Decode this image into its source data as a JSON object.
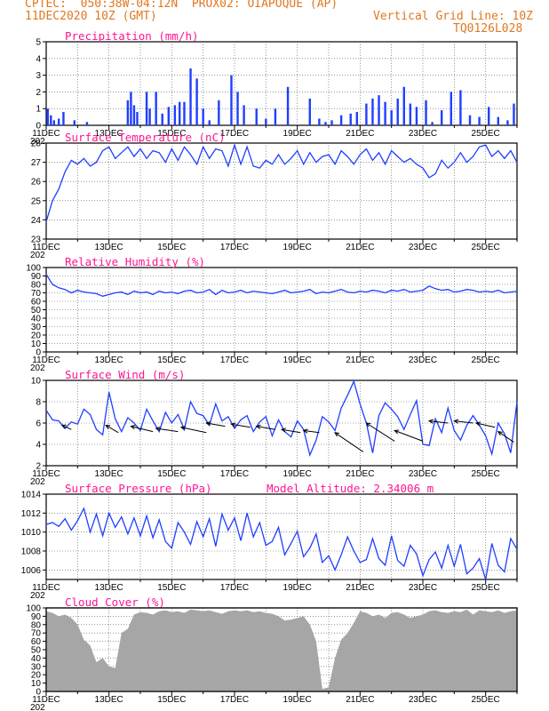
{
  "header": {
    "line1": "CPTEC:  050:38W-04:12N  PROX02: OIAPOQUE (AP)",
    "line2_left": "11DEC2020 10Z (GMT)",
    "line2_right": "Vertical Grid Line: 10Z",
    "line3_right": "TQ0126L028"
  },
  "colors": {
    "header": "#e07820",
    "title": "#ff1493",
    "line": "#1f3fff",
    "cloud": "#a6a6a6",
    "arrow": "#000000"
  },
  "xaxis": {
    "ticks": [
      "11DEC",
      "13DEC",
      "15DEC",
      "17DEC",
      "19DEC",
      "21DEC",
      "23DEC",
      "25DEC"
    ],
    "year_fragment": "202"
  },
  "chart_data": [
    {
      "type": "bar",
      "title": "Precipitation (mm/h)",
      "ylim": [
        0,
        5
      ],
      "yticks": [
        "0",
        "1",
        "2",
        "3",
        "4",
        "5"
      ],
      "days": [
        11,
        26
      ],
      "color": "#1f3fff",
      "x": [
        11.05,
        11.15,
        11.25,
        11.4,
        11.55,
        11.9,
        12.3,
        13.6,
        13.7,
        13.8,
        13.9,
        14.2,
        14.3,
        14.5,
        14.7,
        14.9,
        15.1,
        15.25,
        15.4,
        15.6,
        15.8,
        16.0,
        16.2,
        16.5,
        16.9,
        17.1,
        17.3,
        17.7,
        18.0,
        18.3,
        18.7,
        19.4,
        19.7,
        19.9,
        20.1,
        20.4,
        20.7,
        20.9,
        21.2,
        21.4,
        21.6,
        21.8,
        22.0,
        22.2,
        22.4,
        22.6,
        22.8,
        23.1,
        23.3,
        23.6,
        23.9,
        24.2,
        24.5,
        24.8,
        25.1,
        25.4,
        25.7,
        25.9
      ],
      "values": [
        1.0,
        0.6,
        0.3,
        0.4,
        0.8,
        0.3,
        0.2,
        1.5,
        2.0,
        1.2,
        0.8,
        2.0,
        1.0,
        2.0,
        0.7,
        1.1,
        1.2,
        1.4,
        1.4,
        3.4,
        2.8,
        1.0,
        0.3,
        1.5,
        3.0,
        2.0,
        1.2,
        1.0,
        0.4,
        1.0,
        2.3,
        1.6,
        0.4,
        0.2,
        0.3,
        0.6,
        0.7,
        0.8,
        1.3,
        1.6,
        1.8,
        1.4,
        0.9,
        1.6,
        2.3,
        1.3,
        1.1,
        1.5,
        0.2,
        0.9,
        2.0,
        2.1,
        0.6,
        0.5,
        1.1,
        0.5,
        0.3,
        1.3
      ]
    },
    {
      "type": "line",
      "title": "Surface Temperature (nC)",
      "ylim": [
        23,
        28
      ],
      "yticks": [
        "23",
        "24",
        "25",
        "26",
        "27",
        "28"
      ],
      "days": [
        11,
        26
      ],
      "color": "#1f3fff",
      "x": [
        11.0,
        11.2,
        11.4,
        11.6,
        11.8,
        12.0,
        12.2,
        12.4,
        12.6,
        12.8,
        13.0,
        13.2,
        13.4,
        13.6,
        13.8,
        14.0,
        14.2,
        14.4,
        14.6,
        14.8,
        15.0,
        15.2,
        15.4,
        15.6,
        15.8,
        16.0,
        16.2,
        16.4,
        16.6,
        16.8,
        17.0,
        17.2,
        17.4,
        17.6,
        17.8,
        18.0,
        18.2,
        18.4,
        18.6,
        18.8,
        19.0,
        19.2,
        19.4,
        19.6,
        19.8,
        20.0,
        20.2,
        20.4,
        20.6,
        20.8,
        21.0,
        21.2,
        21.4,
        21.6,
        21.8,
        22.0,
        22.2,
        22.4,
        22.6,
        22.8,
        23.0,
        23.2,
        23.4,
        23.6,
        23.8,
        24.0,
        24.2,
        24.4,
        24.6,
        24.8,
        25.0,
        25.2,
        25.4,
        25.6,
        25.8,
        26.0
      ],
      "values": [
        23.9,
        25.0,
        25.6,
        26.5,
        27.1,
        26.9,
        27.2,
        26.8,
        27.0,
        27.6,
        27.8,
        27.2,
        27.5,
        27.8,
        27.3,
        27.7,
        27.2,
        27.6,
        27.5,
        27.0,
        27.7,
        27.1,
        27.8,
        27.4,
        26.9,
        27.8,
        27.2,
        27.7,
        27.6,
        26.8,
        27.9,
        26.9,
        27.8,
        26.8,
        26.7,
        27.1,
        26.9,
        27.4,
        26.9,
        27.2,
        27.6,
        26.9,
        27.5,
        27.0,
        27.3,
        27.4,
        26.9,
        27.6,
        27.3,
        26.9,
        27.4,
        27.7,
        27.1,
        27.5,
        26.9,
        27.6,
        27.3,
        27.0,
        27.2,
        26.9,
        26.7,
        26.2,
        26.4,
        27.1,
        26.7,
        27.0,
        27.5,
        27.0,
        27.3,
        27.8,
        27.9,
        27.3,
        27.6,
        27.2,
        27.6,
        27.0
      ]
    },
    {
      "type": "line",
      "title": "Relative Humidity (%)",
      "ylim": [
        0,
        100
      ],
      "yticks": [
        "0",
        "10",
        "20",
        "30",
        "40",
        "50",
        "60",
        "70",
        "80",
        "90",
        "100"
      ],
      "days": [
        11,
        26
      ],
      "color": "#1f3fff",
      "x": [
        11.0,
        11.2,
        11.4,
        11.6,
        11.8,
        12.0,
        12.2,
        12.4,
        12.6,
        12.8,
        13.0,
        13.2,
        13.4,
        13.6,
        13.8,
        14.0,
        14.2,
        14.4,
        14.6,
        14.8,
        15.0,
        15.2,
        15.4,
        15.6,
        15.8,
        16.0,
        16.2,
        16.4,
        16.6,
        16.8,
        17.0,
        17.2,
        17.4,
        17.6,
        17.8,
        18.0,
        18.2,
        18.4,
        18.6,
        18.8,
        19.0,
        19.2,
        19.4,
        19.6,
        19.8,
        20.0,
        20.2,
        20.4,
        20.6,
        20.8,
        21.0,
        21.2,
        21.4,
        21.6,
        21.8,
        22.0,
        22.2,
        22.4,
        22.6,
        22.8,
        23.0,
        23.2,
        23.4,
        23.6,
        23.8,
        24.0,
        24.2,
        24.4,
        24.6,
        24.8,
        25.0,
        25.2,
        25.4,
        25.6,
        25.8,
        26.0
      ],
      "values": [
        92,
        80,
        76,
        74,
        70,
        73,
        71,
        70,
        69,
        66,
        68,
        70,
        71,
        68,
        72,
        70,
        71,
        68,
        72,
        70,
        71,
        69,
        72,
        73,
        70,
        71,
        74,
        68,
        73,
        70,
        71,
        73,
        70,
        72,
        71,
        70,
        69,
        71,
        73,
        70,
        71,
        72,
        74,
        69,
        71,
        70,
        72,
        74,
        71,
        70,
        72,
        71,
        73,
        72,
        70,
        73,
        72,
        74,
        71,
        72,
        73,
        78,
        75,
        73,
        74,
        71,
        72,
        74,
        73,
        71,
        72,
        71,
        73,
        70,
        71,
        72
      ]
    },
    {
      "type": "line",
      "title": "Surface Wind (m/s)",
      "ylim": [
        2,
        10
      ],
      "yticks": [
        "2",
        "4",
        "6",
        "8",
        "10"
      ],
      "days": [
        11,
        26
      ],
      "color": "#1f3fff",
      "vectors": "arrows showing wind direction, mostly from the east",
      "x": [
        11.0,
        11.2,
        11.4,
        11.6,
        11.8,
        12.0,
        12.2,
        12.4,
        12.6,
        12.8,
        13.0,
        13.2,
        13.4,
        13.6,
        13.8,
        14.0,
        14.2,
        14.4,
        14.6,
        14.8,
        15.0,
        15.2,
        15.4,
        15.6,
        15.8,
        16.0,
        16.2,
        16.4,
        16.6,
        16.8,
        17.0,
        17.2,
        17.4,
        17.6,
        17.8,
        18.0,
        18.2,
        18.4,
        18.6,
        18.8,
        19.0,
        19.2,
        19.4,
        19.6,
        19.8,
        20.0,
        20.2,
        20.4,
        20.6,
        20.8,
        21.0,
        21.2,
        21.4,
        21.6,
        21.8,
        22.0,
        22.2,
        22.4,
        22.6,
        22.8,
        23.0,
        23.2,
        23.4,
        23.6,
        23.8,
        24.0,
        24.2,
        24.4,
        24.6,
        24.8,
        25.0,
        25.2,
        25.4,
        25.6,
        25.8,
        26.0
      ],
      "values": [
        7.2,
        6.3,
        6.2,
        5.5,
        6.1,
        5.9,
        7.3,
        6.8,
        5.4,
        4.9,
        8.9,
        6.4,
        5.2,
        6.5,
        6.0,
        5.3,
        7.3,
        6.2,
        5.2,
        7.0,
        6.0,
        6.8,
        5.4,
        8.0,
        6.9,
        6.7,
        5.8,
        7.8,
        6.2,
        6.6,
        5.5,
        6.3,
        6.7,
        5.2,
        6.1,
        6.6,
        4.8,
        6.3,
        5.2,
        4.7,
        6.2,
        5.4,
        3.0,
        4.4,
        6.6,
        6.1,
        5.3,
        7.4,
        8.6,
        9.9,
        7.8,
        6.0,
        3.2,
        6.7,
        7.9,
        7.3,
        6.6,
        5.4,
        6.8,
        8.1,
        4.0,
        3.9,
        6.4,
        5.1,
        7.4,
        5.3,
        4.4,
        5.8,
        6.7,
        5.8,
        4.8,
        3.1,
        6.0,
        5.0,
        3.2,
        8.0
      ],
      "arrows": [
        {
          "x": 11.5,
          "y": 5.8,
          "dx": 0.3,
          "dy": -0.4
        },
        {
          "x": 12.9,
          "y": 5.8,
          "dx": 0.4,
          "dy": -0.7
        },
        {
          "x": 13.7,
          "y": 5.7,
          "dx": 0.7,
          "dy": -0.5
        },
        {
          "x": 14.5,
          "y": 5.5,
          "dx": 0.7,
          "dy": -0.3
        },
        {
          "x": 15.3,
          "y": 5.6,
          "dx": 0.8,
          "dy": -0.5
        },
        {
          "x": 16.1,
          "y": 6.0,
          "dx": 0.6,
          "dy": -0.3
        },
        {
          "x": 16.9,
          "y": 5.9,
          "dx": 0.6,
          "dy": -0.3
        },
        {
          "x": 17.7,
          "y": 5.7,
          "dx": 0.6,
          "dy": -0.3
        },
        {
          "x": 18.5,
          "y": 5.4,
          "dx": 0.6,
          "dy": -0.3
        },
        {
          "x": 19.2,
          "y": 5.3,
          "dx": 0.5,
          "dy": -0.2
        },
        {
          "x": 20.2,
          "y": 5.1,
          "dx": 0.9,
          "dy": -1.8
        },
        {
          "x": 21.2,
          "y": 6.0,
          "dx": 0.9,
          "dy": -1.7
        },
        {
          "x": 22.1,
          "y": 5.3,
          "dx": 0.9,
          "dy": -1.0
        },
        {
          "x": 23.2,
          "y": 6.2,
          "dx": 0.6,
          "dy": -0.2
        },
        {
          "x": 24.0,
          "y": 6.2,
          "dx": 0.6,
          "dy": -0.2
        },
        {
          "x": 24.7,
          "y": 6.0,
          "dx": 0.6,
          "dy": -0.4
        },
        {
          "x": 25.4,
          "y": 5.2,
          "dx": 0.5,
          "dy": -1.0
        }
      ]
    },
    {
      "type": "line",
      "title": "Surface Pressure (hPa)",
      "annotation": "Model Altitude: 2.34006 m",
      "ylim": [
        1005,
        1014
      ],
      "yticks": [
        "1006",
        "1008",
        "1010",
        "1012",
        "1014"
      ],
      "days": [
        11,
        26
      ],
      "color": "#1f3fff",
      "x": [
        11.0,
        11.2,
        11.4,
        11.6,
        11.8,
        12.0,
        12.2,
        12.4,
        12.6,
        12.8,
        13.0,
        13.2,
        13.4,
        13.6,
        13.8,
        14.0,
        14.2,
        14.4,
        14.6,
        14.8,
        15.0,
        15.2,
        15.4,
        15.6,
        15.8,
        16.0,
        16.2,
        16.4,
        16.6,
        16.8,
        17.0,
        17.2,
        17.4,
        17.6,
        17.8,
        18.0,
        18.2,
        18.4,
        18.6,
        18.8,
        19.0,
        19.2,
        19.4,
        19.6,
        19.8,
        20.0,
        20.2,
        20.4,
        20.6,
        20.8,
        21.0,
        21.2,
        21.4,
        21.6,
        21.8,
        22.0,
        22.2,
        22.4,
        22.6,
        22.8,
        23.0,
        23.2,
        23.4,
        23.6,
        23.8,
        24.0,
        24.2,
        24.4,
        24.6,
        24.8,
        25.0,
        25.2,
        25.4,
        25.6,
        25.8,
        26.0
      ],
      "values": [
        1010.8,
        1011.0,
        1010.6,
        1011.4,
        1010.2,
        1011.2,
        1012.5,
        1010.0,
        1011.9,
        1009.6,
        1012.0,
        1010.5,
        1011.6,
        1009.8,
        1011.5,
        1009.6,
        1011.7,
        1009.4,
        1011.3,
        1009.0,
        1008.3,
        1011.0,
        1010.0,
        1008.7,
        1011.1,
        1009.5,
        1011.4,
        1008.5,
        1011.9,
        1010.2,
        1011.5,
        1009.1,
        1012.0,
        1009.5,
        1011.0,
        1008.6,
        1009.0,
        1010.5,
        1007.6,
        1008.8,
        1010.1,
        1007.4,
        1008.3,
        1009.8,
        1006.8,
        1007.5,
        1006.0,
        1007.6,
        1009.5,
        1008.0,
        1006.8,
        1007.1,
        1009.3,
        1007.2,
        1006.5,
        1009.6,
        1007.0,
        1006.4,
        1008.6,
        1007.7,
        1005.4,
        1007.1,
        1007.9,
        1006.2,
        1008.6,
        1006.4,
        1008.7,
        1005.6,
        1006.2,
        1007.2,
        1005.0,
        1008.8,
        1006.5,
        1005.8,
        1009.3,
        1008.2
      ]
    },
    {
      "type": "area",
      "title": "Cloud Cover (%)",
      "ylim": [
        0,
        100
      ],
      "yticks": [
        "0",
        "10",
        "20",
        "30",
        "40",
        "50",
        "60",
        "70",
        "80",
        "90",
        "100"
      ],
      "days": [
        11,
        26
      ],
      "color": "#a6a6a6",
      "x": [
        11.0,
        11.2,
        11.4,
        11.6,
        11.8,
        12.0,
        12.2,
        12.4,
        12.6,
        12.8,
        13.0,
        13.2,
        13.4,
        13.6,
        13.8,
        14.0,
        14.2,
        14.4,
        14.6,
        14.8,
        15.0,
        15.2,
        15.4,
        15.6,
        15.8,
        16.0,
        16.2,
        16.4,
        16.6,
        16.8,
        17.0,
        17.2,
        17.4,
        17.6,
        17.8,
        18.0,
        18.2,
        18.4,
        18.6,
        18.8,
        19.0,
        19.2,
        19.4,
        19.6,
        19.8,
        20.0,
        20.2,
        20.4,
        20.6,
        20.8,
        21.0,
        21.2,
        21.4,
        21.6,
        21.8,
        22.0,
        22.2,
        22.4,
        22.6,
        22.8,
        23.0,
        23.2,
        23.4,
        23.6,
        23.8,
        24.0,
        24.2,
        24.4,
        24.6,
        24.8,
        25.0,
        25.2,
        25.4,
        25.6,
        25.8,
        26.0
      ],
      "values": [
        96,
        94,
        90,
        92,
        88,
        80,
        62,
        55,
        35,
        40,
        30,
        28,
        70,
        75,
        92,
        95,
        94,
        92,
        96,
        97,
        95,
        96,
        94,
        98,
        97,
        96,
        97,
        95,
        93,
        96,
        97,
        96,
        97,
        95,
        96,
        94,
        93,
        90,
        85,
        86,
        88,
        90,
        80,
        60,
        3,
        5,
        40,
        62,
        70,
        82,
        96,
        94,
        90,
        92,
        88,
        94,
        95,
        92,
        88,
        90,
        92,
        96,
        97,
        95,
        94,
        96,
        95,
        98,
        92,
        97,
        96,
        95,
        97,
        94,
        96,
        97
      ]
    }
  ]
}
